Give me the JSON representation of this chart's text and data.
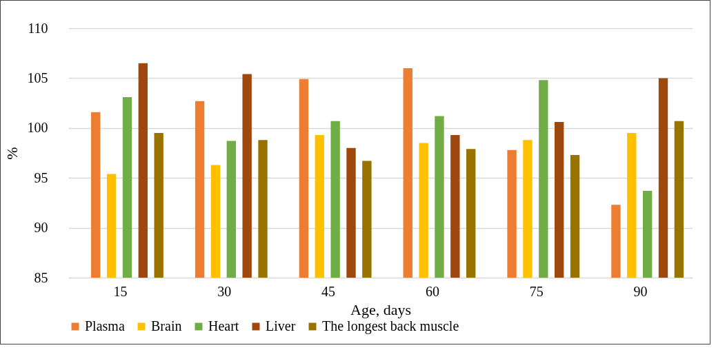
{
  "chart_data": {
    "type": "bar",
    "xlabel": "Age, days",
    "ylabel": "%",
    "categories": [
      "15",
      "30",
      "45",
      "60",
      "75",
      "90"
    ],
    "series": [
      {
        "name": "Plasma",
        "color": "#ed7d31",
        "values": [
          101.6,
          102.7,
          104.9,
          106.0,
          97.8,
          92.3
        ]
      },
      {
        "name": "Brain",
        "color": "#ffc000",
        "values": [
          95.4,
          96.3,
          99.3,
          98.5,
          98.8,
          99.5
        ]
      },
      {
        "name": "Heart",
        "color": "#70ad47",
        "values": [
          103.1,
          98.7,
          100.7,
          101.2,
          104.8,
          93.7
        ]
      },
      {
        "name": "Liver",
        "color": "#9e480e",
        "values": [
          106.5,
          105.4,
          98.0,
          99.3,
          100.6,
          105.0
        ]
      },
      {
        "name": "The longest back muscle",
        "color": "#997300",
        "values": [
          99.5,
          98.8,
          96.7,
          97.9,
          97.3,
          100.7
        ]
      }
    ],
    "ylim": [
      85,
      110
    ],
    "yticks": [
      85,
      90,
      95,
      100,
      105,
      110
    ],
    "grid": "y",
    "legend": "bottom"
  }
}
